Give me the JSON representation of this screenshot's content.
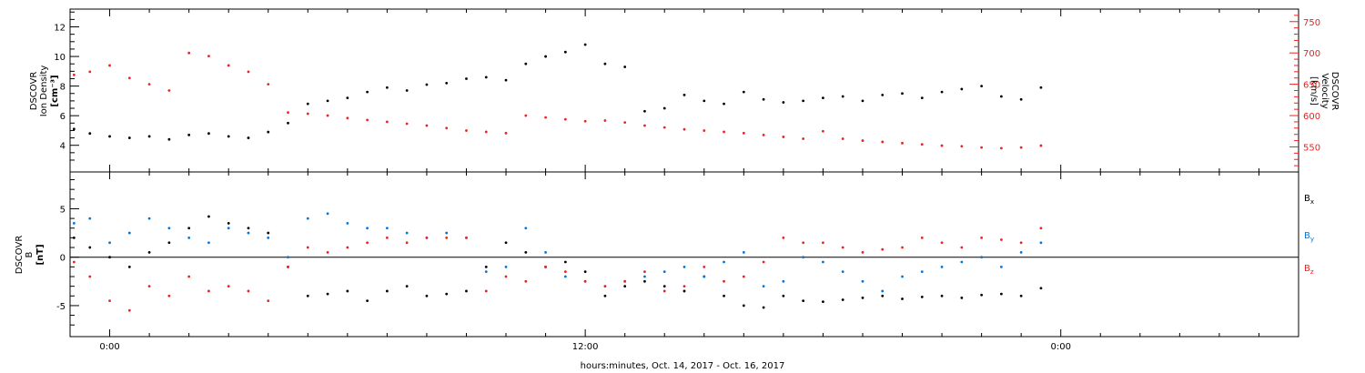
{
  "chart_data": [
    {
      "type": "scatter",
      "title": "",
      "xlabel": "hours:minutes, Oct. 14, 2017 - Oct. 16, 2017",
      "x_tick_labels": [
        "0:00",
        "12:00",
        "0:00"
      ],
      "x_range_hours": [
        -1,
        30
      ],
      "left_axis": {
        "label_lines": [
          "DSCOVR",
          "Ion Density"
        ],
        "unit": "[cm⁻³]",
        "ylim": [
          2.2,
          13.2
        ],
        "ticks": [
          4,
          6,
          8,
          10,
          12
        ],
        "color": "#000000"
      },
      "right_axis": {
        "label_lines": [
          "DSCOVR",
          "Velocity"
        ],
        "unit": "[km/s]",
        "ylim": [
          510,
          770
        ],
        "ticks": [
          550,
          600,
          650,
          700,
          750
        ],
        "color": "#ee2222"
      },
      "series": [
        {
          "name": "Ion Density",
          "axis": "left",
          "color": "#000000",
          "x": [
            -0.9,
            -0.5,
            0,
            0.5,
            1,
            1.5,
            2,
            2.5,
            3,
            3.5,
            4,
            4.5,
            5,
            5.5,
            6,
            6.5,
            7,
            7.5,
            8,
            8.5,
            9,
            9.5,
            10,
            10.5,
            11,
            11.5,
            12,
            12.5,
            13,
            13.5,
            14,
            14.5,
            15,
            15.5,
            16,
            16.5,
            17,
            17.5,
            18,
            18.5,
            19,
            19.5,
            20,
            20.5,
            21,
            21.5,
            22,
            22.5,
            23,
            23.5
          ],
          "y": [
            5.1,
            4.8,
            4.6,
            4.5,
            4.6,
            4.4,
            4.7,
            4.8,
            4.6,
            4.5,
            4.9,
            5.5,
            6.8,
            7.0,
            7.2,
            7.6,
            7.9,
            7.7,
            8.1,
            8.2,
            8.5,
            8.6,
            8.4,
            9.5,
            10.0,
            10.3,
            10.8,
            9.5,
            9.3,
            6.3,
            6.5,
            7.4,
            7.0,
            6.8,
            7.6,
            7.1,
            6.9,
            7.0,
            7.2,
            7.3,
            7.0,
            7.4,
            7.5,
            7.2,
            7.6,
            7.8,
            8.0,
            7.3,
            7.1,
            7.9
          ]
        },
        {
          "name": "Velocity",
          "axis": "right",
          "color": "#ee2222",
          "x": [
            -0.9,
            -0.5,
            0,
            0.5,
            1,
            1.5,
            2,
            2.5,
            3,
            3.5,
            4,
            4.5,
            5,
            5.5,
            6,
            6.5,
            7,
            7.5,
            8,
            8.5,
            9,
            9.5,
            10,
            10.5,
            11,
            11.5,
            12,
            12.5,
            13,
            13.5,
            14,
            14.5,
            15,
            15.5,
            16,
            16.5,
            17,
            17.5,
            18,
            18.5,
            19,
            19.5,
            20,
            20.5,
            21,
            21.5,
            22,
            22.5,
            23,
            23.5
          ],
          "y": [
            665,
            670,
            680,
            660,
            650,
            640,
            700,
            695,
            680,
            670,
            650,
            605,
            603,
            600,
            596,
            593,
            590,
            587,
            584,
            580,
            576,
            574,
            572,
            600,
            597,
            594,
            591,
            592,
            589,
            584,
            581,
            578,
            576,
            574,
            572,
            569,
            566,
            563,
            575,
            563,
            560,
            558,
            556,
            554,
            552,
            551,
            549,
            548,
            549,
            552
          ]
        }
      ]
    },
    {
      "type": "scatter",
      "title": "",
      "left_axis": {
        "label_lines": [
          "DSCOVR",
          "B"
        ],
        "unit": "[nT]",
        "ylim": [
          -8.2,
          8.8
        ],
        "ticks": [
          -5,
          0,
          5
        ],
        "color": "#000000"
      },
      "zero_line": true,
      "legend": {
        "placement": "right",
        "entries": [
          {
            "name": "B",
            "sub": "x",
            "color": "#000000"
          },
          {
            "name": "B",
            "sub": "y",
            "color": "#0077dd"
          },
          {
            "name": "B",
            "sub": "z",
            "color": "#ee2222"
          }
        ]
      },
      "series": [
        {
          "name": "Bx",
          "color": "#000000",
          "x": [
            -0.9,
            -0.5,
            0,
            0.5,
            1,
            1.5,
            2,
            2.5,
            3,
            3.5,
            4,
            4.5,
            5,
            5.5,
            6,
            6.5,
            7,
            7.5,
            8,
            8.5,
            9,
            9.5,
            10,
            10.5,
            11,
            11.5,
            12,
            12.5,
            13,
            13.5,
            14,
            14.5,
            15,
            15.5,
            16,
            16.5,
            17,
            17.5,
            18,
            18.5,
            19,
            19.5,
            20,
            20.5,
            21,
            21.5,
            22,
            22.5,
            23,
            23.5
          ],
          "y": [
            2.0,
            1.0,
            0.0,
            -1.0,
            0.5,
            1.5,
            3.0,
            4.2,
            3.5,
            3.0,
            2.5,
            -1.0,
            -4.0,
            -3.8,
            -3.5,
            -4.5,
            -3.5,
            -3.0,
            -4.0,
            -3.8,
            -3.5,
            -1.0,
            1.5,
            0.5,
            -1.0,
            -0.5,
            -1.5,
            -4.0,
            -3.0,
            -2.5,
            -3.0,
            -3.5,
            -2.0,
            -4.0,
            -5.0,
            -5.2,
            -4.0,
            -4.5,
            -4.6,
            -4.4,
            -4.2,
            -4.0,
            -4.3,
            -4.1,
            -4.0,
            -4.2,
            -3.9,
            -3.8,
            -4.0,
            -3.2
          ]
        },
        {
          "name": "By",
          "color": "#0077dd",
          "x": [
            -0.9,
            -0.5,
            0,
            0.5,
            1,
            1.5,
            2,
            2.5,
            3,
            3.5,
            4,
            4.5,
            5,
            5.5,
            6,
            6.5,
            7,
            7.5,
            8,
            8.5,
            9,
            9.5,
            10,
            10.5,
            11,
            11.5,
            12,
            12.5,
            13,
            13.5,
            14,
            14.5,
            15,
            15.5,
            16,
            16.5,
            17,
            17.5,
            18,
            18.5,
            19,
            19.5,
            20,
            20.5,
            21,
            21.5,
            22,
            22.5,
            23,
            23.5
          ],
          "y": [
            3.5,
            4.0,
            1.5,
            2.5,
            4.0,
            3.0,
            2.0,
            1.5,
            3.0,
            2.5,
            2.0,
            0.0,
            4.0,
            4.5,
            3.5,
            3.0,
            3.0,
            2.5,
            2.0,
            2.5,
            2.0,
            -1.5,
            -1.0,
            3.0,
            0.5,
            -2.0,
            -2.5,
            -3.0,
            -2.5,
            -2.0,
            -1.5,
            -1.0,
            -2.0,
            -0.5,
            0.5,
            -3.0,
            -2.5,
            0.0,
            -0.5,
            -1.5,
            -2.5,
            -3.5,
            -2.0,
            -1.5,
            -1.0,
            -0.5,
            0.0,
            -1.0,
            0.5,
            1.5
          ]
        },
        {
          "name": "Bz",
          "color": "#ee2222",
          "x": [
            -0.9,
            -0.5,
            0,
            0.5,
            1,
            1.5,
            2,
            2.5,
            3,
            3.5,
            4,
            4.5,
            5,
            5.5,
            6,
            6.5,
            7,
            7.5,
            8,
            8.5,
            9,
            9.5,
            10,
            10.5,
            11,
            11.5,
            12,
            12.5,
            13,
            13.5,
            14,
            14.5,
            15,
            15.5,
            16,
            16.5,
            17,
            17.5,
            18,
            18.5,
            19,
            19.5,
            20,
            20.5,
            21,
            21.5,
            22,
            22.5,
            23,
            23.5
          ],
          "y": [
            -0.5,
            -2.0,
            -4.5,
            -5.5,
            -3.0,
            -4.0,
            -2.0,
            -3.5,
            -3.0,
            -3.5,
            -4.5,
            -1.0,
            1.0,
            0.5,
            1.0,
            1.5,
            2.0,
            1.5,
            2.0,
            2.0,
            2.0,
            -3.5,
            -2.0,
            -2.5,
            -1.0,
            -1.5,
            -2.5,
            -3.0,
            -2.5,
            -1.5,
            -3.5,
            -3.0,
            -1.0,
            -2.5,
            -2.0,
            -0.5,
            2.0,
            1.5,
            1.5,
            1.0,
            0.5,
            0.8,
            1.0,
            2.0,
            1.5,
            1.0,
            2.0,
            1.8,
            1.5,
            3.0
          ]
        }
      ]
    }
  ]
}
